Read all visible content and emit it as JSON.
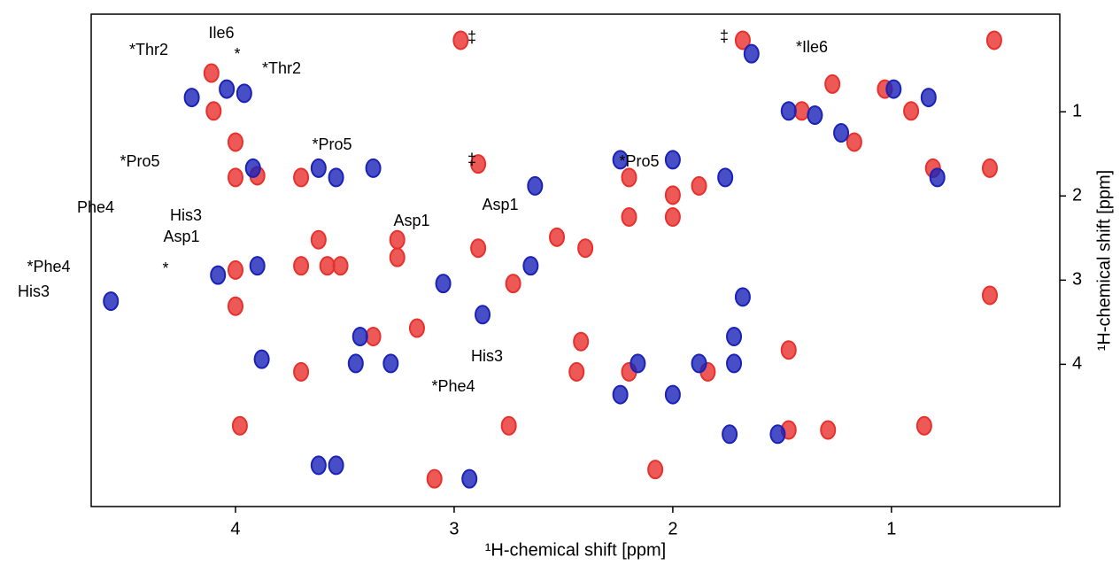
{
  "chart_data": {
    "type": "scatter",
    "x_label": "¹H-chemical shift [ppm]",
    "y_label": "¹H-chemical shift [ppm]",
    "xlim": [
      0.23,
      4.66
    ],
    "x_reversed": true,
    "ylim": [
      -0.16,
      5.69
    ],
    "y_reversed": true,
    "xticks": [
      4,
      3,
      2,
      1
    ],
    "yticks": [
      1,
      2,
      3,
      4
    ],
    "series": [
      {
        "color": "#e8302c",
        "x": [
          4.11,
          4.1,
          4.0,
          4.0,
          4.0,
          4.0,
          3.9,
          3.98,
          3.7,
          3.7,
          3.7,
          3.62,
          3.58,
          3.52,
          3.26,
          3.26,
          2.97,
          2.89,
          2.89,
          3.17,
          3.37,
          2.73,
          2.53,
          2.42,
          2.44,
          2.4,
          2.2,
          2.2,
          2.0,
          2.0,
          1.88,
          1.84,
          1.47,
          1.41,
          1.27,
          1.17,
          1.03,
          0.91,
          0.81,
          0.53,
          0.55,
          0.55,
          1.68,
          1.29,
          1.47,
          2.08,
          3.09,
          2.75,
          0.85,
          2.2
        ],
        "y": [
          0.54,
          0.99,
          1.36,
          1.78,
          2.88,
          3.31,
          1.76,
          4.73,
          1.78,
          2.83,
          4.09,
          2.52,
          2.83,
          2.83,
          2.73,
          2.52,
          0.15,
          1.62,
          2.62,
          3.57,
          3.67,
          3.04,
          2.49,
          3.73,
          4.09,
          2.62,
          1.78,
          2.25,
          1.99,
          2.25,
          1.88,
          4.09,
          3.83,
          0.99,
          0.67,
          1.36,
          0.73,
          0.99,
          1.67,
          0.15,
          1.67,
          3.18,
          0.15,
          4.78,
          4.78,
          5.25,
          5.36,
          4.73,
          4.73,
          4.09
        ]
      },
      {
        "color": "#1a22b8",
        "x": [
          4.2,
          4.04,
          3.96,
          3.92,
          3.9,
          3.88,
          3.62,
          3.54,
          3.37,
          3.45,
          3.43,
          3.29,
          3.54,
          3.62,
          2.93,
          2.24,
          2.16,
          2.0,
          1.88,
          1.72,
          1.72,
          1.52,
          1.64,
          1.47,
          1.35,
          1.23,
          0.99,
          0.83,
          0.79,
          1.76,
          1.68,
          1.74,
          2.87,
          3.05,
          2.65,
          2.0,
          2.24,
          2.63,
          4.08,
          4.57
        ],
        "y": [
          0.83,
          0.73,
          0.78,
          1.67,
          2.83,
          3.94,
          1.67,
          1.78,
          1.67,
          3.99,
          3.67,
          3.99,
          5.2,
          5.2,
          5.36,
          4.36,
          3.99,
          4.36,
          3.99,
          3.99,
          3.67,
          4.83,
          0.31,
          0.99,
          1.04,
          1.25,
          0.73,
          0.83,
          1.78,
          1.78,
          3.2,
          4.83,
          3.41,
          3.04,
          2.83,
          1.57,
          1.57,
          1.88,
          2.94,
          3.25
        ]
      }
    ],
    "annotations": [
      "*Thr2",
      "Ile6",
      "*",
      "*Thr2",
      "*Pro5",
      "*Pro5",
      "Phe4",
      "His3",
      "Asp1",
      "Asp1",
      "*",
      "*Phe4",
      "His3",
      "‡",
      "‡",
      "*Ile6",
      "‡",
      "*Pro5",
      "Asp1",
      "His3",
      "*Phe4"
    ]
  }
}
